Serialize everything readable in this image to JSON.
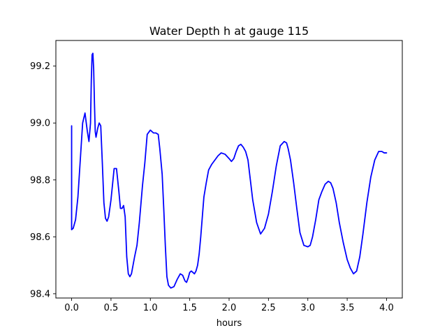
{
  "chart_data": {
    "type": "line",
    "title": "Water Depth h at gauge 115",
    "xlabel": "hours",
    "ylabel": "",
    "xlim": [
      -0.2,
      4.2
    ],
    "ylim": [
      98.385,
      99.29
    ],
    "xticks": [
      0.0,
      0.5,
      1.0,
      1.5,
      2.0,
      2.5,
      3.0,
      3.5,
      4.0
    ],
    "xtick_labels": [
      "0.0",
      "0.5",
      "1.0",
      "1.5",
      "2.0",
      "2.5",
      "3.0",
      "3.5",
      "4.0"
    ],
    "yticks": [
      98.4,
      98.6,
      98.8,
      99.0,
      99.2
    ],
    "ytick_labels": [
      "98.4",
      "98.6",
      "98.8",
      "99.0",
      "99.2"
    ],
    "grid": false,
    "series": [
      {
        "color": "#0000ff",
        "x": [
          0.0,
          0.0,
          0.02,
          0.05,
          0.08,
          0.11,
          0.14,
          0.17,
          0.2,
          0.22,
          0.24,
          0.25,
          0.26,
          0.27,
          0.28,
          0.29,
          0.3,
          0.31,
          0.33,
          0.35,
          0.37,
          0.39,
          0.41,
          0.43,
          0.45,
          0.47,
          0.5,
          0.54,
          0.57,
          0.6,
          0.62,
          0.64,
          0.66,
          0.68,
          0.7,
          0.72,
          0.74,
          0.76,
          0.78,
          0.8,
          0.83,
          0.86,
          0.9,
          0.93,
          0.96,
          1.0,
          1.04,
          1.07,
          1.1,
          1.12,
          1.15,
          1.17,
          1.19,
          1.21,
          1.23,
          1.26,
          1.3,
          1.34,
          1.38,
          1.41,
          1.44,
          1.46,
          1.48,
          1.5,
          1.52,
          1.54,
          1.56,
          1.58,
          1.6,
          1.62,
          1.64,
          1.66,
          1.68,
          1.71,
          1.74,
          1.78,
          1.82,
          1.86,
          1.9,
          1.95,
          2.0,
          2.03,
          2.06,
          2.09,
          2.12,
          2.15,
          2.18,
          2.21,
          2.24,
          2.27,
          2.3,
          2.35,
          2.4,
          2.45,
          2.5,
          2.55,
          2.6,
          2.65,
          2.7,
          2.73,
          2.75,
          2.78,
          2.82,
          2.86,
          2.9,
          2.95,
          3.0,
          3.03,
          3.06,
          3.1,
          3.14,
          3.18,
          3.22,
          3.26,
          3.29,
          3.32,
          3.36,
          3.4,
          3.45,
          3.5,
          3.54,
          3.58,
          3.62,
          3.66,
          3.7,
          3.75,
          3.8,
          3.85,
          3.9,
          3.94,
          3.97,
          4.0
        ],
        "y": [
          98.99,
          98.625,
          98.63,
          98.66,
          98.74,
          98.87,
          99.0,
          99.035,
          98.97,
          98.935,
          99.0,
          99.15,
          99.24,
          99.245,
          99.19,
          99.07,
          98.97,
          98.95,
          98.98,
          99.0,
          98.99,
          98.86,
          98.72,
          98.665,
          98.655,
          98.67,
          98.73,
          98.84,
          98.84,
          98.76,
          98.7,
          98.7,
          98.71,
          98.67,
          98.53,
          98.47,
          98.46,
          98.47,
          98.5,
          98.53,
          98.57,
          98.65,
          98.78,
          98.86,
          98.96,
          98.975,
          98.965,
          98.965,
          98.96,
          98.91,
          98.82,
          98.7,
          98.57,
          98.46,
          98.43,
          98.42,
          98.425,
          98.45,
          98.47,
          98.465,
          98.445,
          98.44,
          98.455,
          98.475,
          98.48,
          98.475,
          98.47,
          98.48,
          98.5,
          98.54,
          98.6,
          98.67,
          98.74,
          98.79,
          98.835,
          98.855,
          98.87,
          98.885,
          98.895,
          98.89,
          98.875,
          98.865,
          98.875,
          98.9,
          98.92,
          98.925,
          98.915,
          98.9,
          98.87,
          98.8,
          98.73,
          98.65,
          98.61,
          98.63,
          98.68,
          98.76,
          98.85,
          98.92,
          98.935,
          98.93,
          98.91,
          98.87,
          98.79,
          98.7,
          98.615,
          98.57,
          98.565,
          98.57,
          98.6,
          98.66,
          98.73,
          98.76,
          98.785,
          98.795,
          98.79,
          98.77,
          98.72,
          98.65,
          98.58,
          98.52,
          98.49,
          98.47,
          98.48,
          98.53,
          98.61,
          98.72,
          98.81,
          98.87,
          98.9,
          98.9,
          98.895,
          98.895
        ]
      }
    ]
  }
}
